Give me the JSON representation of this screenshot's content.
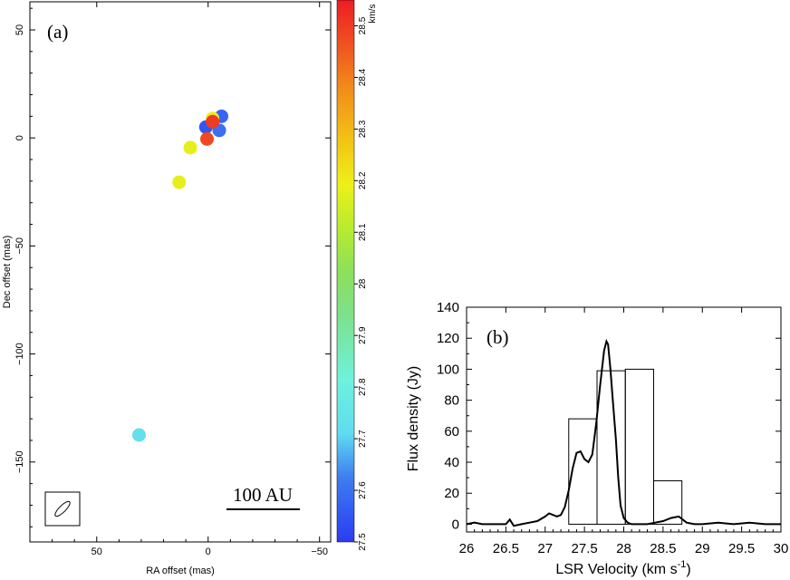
{
  "chart_data": [
    {
      "type": "scatter",
      "panel_label": "(a)",
      "xlabel": "RA offset (mas)",
      "ylabel": "Dec offset (mas)",
      "xlim": [
        80,
        -55
      ],
      "ylim": [
        -187,
        63
      ],
      "xticks": [
        50,
        0,
        -50
      ],
      "xtick_labels": [
        "50",
        "0",
        "−50"
      ],
      "yticks": [
        50,
        0,
        -50,
        -100,
        -150
      ],
      "ytick_labels": [
        "50",
        "0",
        "−50",
        "−100",
        "−150"
      ],
      "scale_bar_label": "100 AU",
      "points": [
        {
          "ra": -6,
          "dec": 10,
          "v": 27.58
        },
        {
          "ra": 1,
          "dec": 5,
          "v": 27.55
        },
        {
          "ra": -5,
          "dec": 3.5,
          "v": 27.6
        },
        {
          "ra": -2,
          "dec": 9,
          "v": 28.2
        },
        {
          "ra": -2,
          "dec": 7.5,
          "v": 28.5
        },
        {
          "ra": 0.5,
          "dec": -0.5,
          "v": 28.48
        },
        {
          "ra": 8,
          "dec": -4.5,
          "v": 28.18
        },
        {
          "ra": 13,
          "dec": -20.5,
          "v": 28.18
        },
        {
          "ra": 31,
          "dec": -137.5,
          "v": 27.73
        }
      ],
      "colorbar": {
        "label": "km/s",
        "range": [
          27.5,
          28.55
        ],
        "ticks": [
          27.5,
          27.6,
          27.7,
          27.8,
          27.9,
          28,
          28.1,
          28.2,
          28.3,
          28.4,
          28.5
        ],
        "tick_labels": [
          "27.5",
          "27.6",
          "27.7",
          "27.8",
          "27.9",
          "28",
          "28.1",
          "28.2",
          "28.3",
          "28.4",
          "28.5"
        ]
      }
    },
    {
      "type": "line",
      "panel_label": "(b)",
      "xlabel": "LSR Velocity (km s",
      "xlabel_sup": "-1",
      "xlabel_end": ")",
      "ylabel": "Flux density (Jy)",
      "xlim": [
        26,
        30
      ],
      "ylim": [
        -5,
        140
      ],
      "xticks": [
        26,
        26.5,
        27,
        27.5,
        28,
        28.5,
        29,
        29.5,
        30
      ],
      "xtick_labels": [
        "26",
        "26.5",
        "27",
        "27.5",
        "28",
        "28.5",
        "29",
        "29.5",
        "30"
      ],
      "yticks": [
        0,
        20,
        40,
        60,
        80,
        100,
        120,
        140
      ],
      "ytick_labels": [
        "0",
        "20",
        "40",
        "60",
        "80",
        "100",
        "120",
        "140"
      ],
      "bars": [
        {
          "x0": 26.93,
          "x1": 27.3,
          "value": 0
        },
        {
          "x0": 27.3,
          "x1": 27.66,
          "value": 68
        },
        {
          "x0": 27.66,
          "x1": 28.02,
          "value": 99
        },
        {
          "x0": 28.02,
          "x1": 28.38,
          "value": 100
        },
        {
          "x0": 28.38,
          "x1": 28.74,
          "value": 28
        }
      ],
      "spectrum": {
        "x": [
          26.0,
          26.1,
          26.2,
          26.3,
          26.4,
          26.5,
          26.55,
          26.6,
          26.7,
          26.8,
          26.9,
          27.0,
          27.05,
          27.1,
          27.15,
          27.2,
          27.25,
          27.3,
          27.35,
          27.4,
          27.45,
          27.5,
          27.55,
          27.6,
          27.65,
          27.7,
          27.75,
          27.78,
          27.8,
          27.83,
          27.86,
          27.9,
          27.93,
          27.96,
          28.0,
          28.05,
          28.1,
          28.2,
          28.3,
          28.4,
          28.5,
          28.6,
          28.7,
          28.75,
          28.8,
          28.9,
          29.0,
          29.2,
          29.4,
          29.6,
          29.8,
          30.0
        ],
        "y": [
          0,
          1,
          0,
          0,
          0,
          0,
          3,
          -1,
          0,
          1,
          2,
          5,
          7,
          6,
          5,
          6,
          11,
          22,
          36,
          46,
          47,
          42,
          40,
          45,
          65,
          90,
          112,
          118,
          116,
          100,
          80,
          55,
          30,
          12,
          4,
          1,
          0,
          0,
          0,
          1,
          2,
          4,
          5,
          3,
          1,
          0,
          0,
          1,
          0,
          1,
          0,
          0
        ]
      }
    }
  ]
}
